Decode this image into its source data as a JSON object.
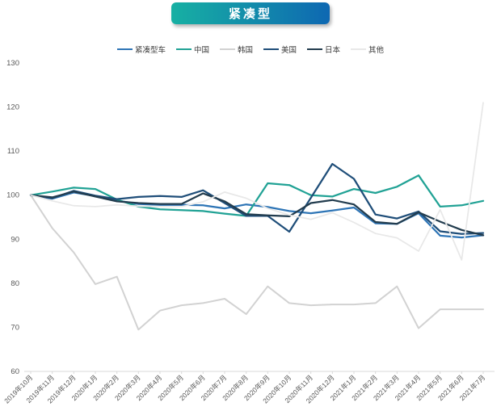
{
  "title": {
    "badge_label": "紧凑型"
  },
  "colors": {
    "badge_gradient_start": "#17B0A3",
    "badge_gradient_end": "#0E68B2",
    "axis_line": "#D9D9D9",
    "tick_label": "#595959"
  },
  "chart_data": {
    "type": "line",
    "title": "紧凑型",
    "xlabel": "",
    "ylabel": "",
    "ylim": [
      60,
      130
    ],
    "yticks": [
      60,
      70,
      80,
      90,
      100,
      110,
      120,
      130
    ],
    "grid": false,
    "legend_position": "top",
    "categories": [
      "2019年10月",
      "2019年11月",
      "2019年12月",
      "2020年1月",
      "2020年2月",
      "2020年3月",
      "2020年4月",
      "2020年5月",
      "2020年6月",
      "2020年7月",
      "2020年8月",
      "2020年9月",
      "2020年10月",
      "2020年11月",
      "2020年12月",
      "2021年1月",
      "2021年2月",
      "2021年3月",
      "2021年4月",
      "2021年5月",
      "2021年6月",
      "2021年7月"
    ],
    "series": [
      {
        "name": "紧凑型车",
        "color": "#2E75B6",
        "stroke_width": 2.25,
        "values": [
          100,
          99.2,
          100.6,
          99.8,
          98.8,
          98.0,
          97.8,
          97.8,
          97.7,
          97.0,
          97.9,
          97.3,
          96.4,
          95.9,
          96.5,
          97.2,
          93.6,
          93.5,
          95.9,
          90.8,
          90.4,
          90.9
        ]
      },
      {
        "name": "中国",
        "color": "#21A295",
        "stroke_width": 2.25,
        "values": [
          100,
          100.8,
          101.7,
          101.4,
          99.0,
          97.4,
          96.8,
          96.6,
          96.4,
          95.8,
          95.3,
          102.7,
          102.3,
          100.0,
          99.7,
          101.4,
          100.5,
          101.9,
          104.5,
          97.4,
          97.7,
          98.7
        ]
      },
      {
        "name": "韩国",
        "color": "#D2D2D2",
        "stroke_width": 2,
        "values": [
          100,
          92.5,
          87.0,
          79.8,
          81.5,
          69.5,
          73.8,
          75.0,
          75.5,
          76.5,
          73.0,
          79.3,
          75.5,
          75.0,
          75.2,
          75.2,
          75.5,
          79.3,
          69.8,
          74.1,
          74.1,
          74.1
        ]
      },
      {
        "name": "美国",
        "color": "#1F4E79",
        "stroke_width": 2.25,
        "values": [
          100,
          99.3,
          101.0,
          99.9,
          99.1,
          99.6,
          99.8,
          99.6,
          101.1,
          98.2,
          95.3,
          95.3,
          91.7,
          99.4,
          107.1,
          103.7,
          95.6,
          94.7,
          96.3,
          91.8,
          91.2,
          91.4
        ]
      },
      {
        "name": "日本",
        "color": "#223C4E",
        "stroke_width": 2.25,
        "values": [
          100,
          99.5,
          100.8,
          99.7,
          98.6,
          98.2,
          98.0,
          98.0,
          100.4,
          98.6,
          95.7,
          95.4,
          95.2,
          98.2,
          98.9,
          97.9,
          93.9,
          93.5,
          96.1,
          94.0,
          92.1,
          90.9
        ]
      },
      {
        "name": "其他",
        "color": "#E8E8E8",
        "stroke_width": 1.75,
        "values": [
          100,
          98.7,
          97.6,
          97.4,
          97.8,
          97.5,
          97.4,
          97.4,
          98.5,
          100.7,
          99.3,
          97.0,
          95.5,
          94.5,
          96.0,
          93.8,
          91.3,
          90.3,
          87.3,
          96.7,
          85.3,
          121.0
        ]
      }
    ]
  }
}
